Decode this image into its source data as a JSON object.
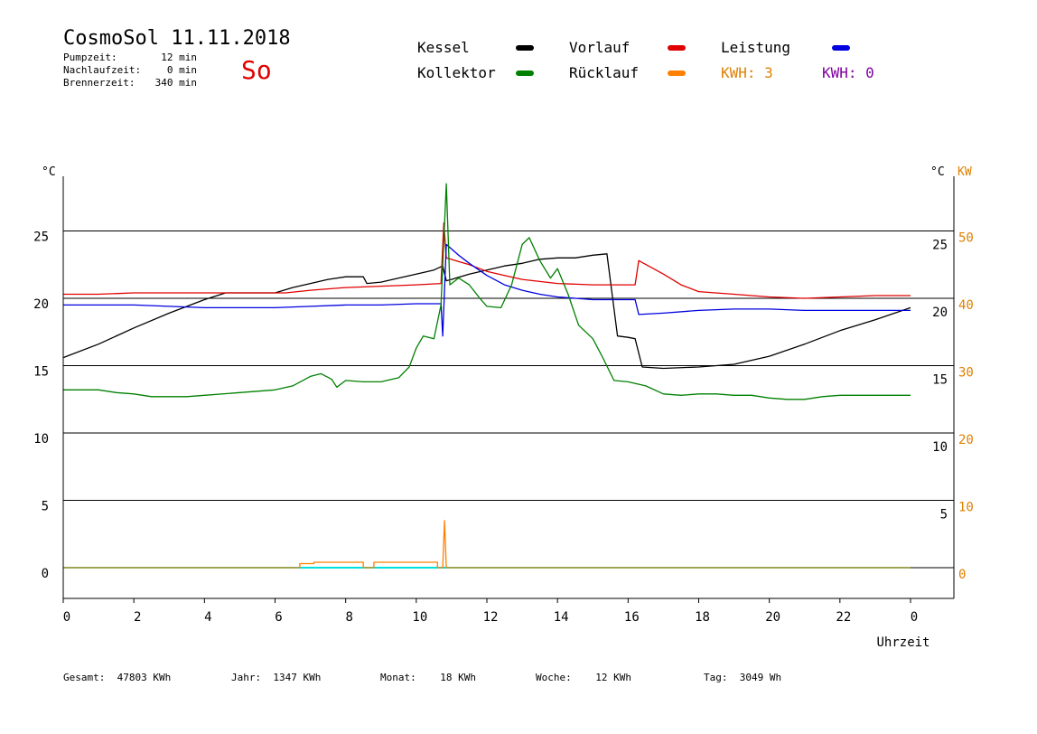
{
  "header": {
    "title": "CosmoSol 11.11.2018",
    "day": "So",
    "stats": [
      {
        "label": "Pumpzeit:",
        "value": "12 min"
      },
      {
        "label": "Nachlaufzeit:",
        "value": "0 min"
      },
      {
        "label": "Brennerzeit:",
        "value": "340 min"
      }
    ]
  },
  "legend": {
    "items": [
      {
        "label": "Kessel",
        "color": "#000000"
      },
      {
        "label": "Vorlauf",
        "color": "#e00000"
      },
      {
        "label": "Leistung",
        "color": "#ff8000"
      },
      {
        "label": "Kollektor",
        "color": "#008000"
      },
      {
        "label": "Rücklauf",
        "color": "#0000e0"
      }
    ],
    "kwh": [
      {
        "label": "KWH:",
        "value": "3",
        "color": "#e08000"
      },
      {
        "label": "KWH:",
        "value": "0",
        "color": "#8000a0"
      }
    ]
  },
  "footer": [
    {
      "label": "Gesamt:",
      "value": "47803 KWh"
    },
    {
      "label": "Jahr:",
      "value": "1347 KWh"
    },
    {
      "label": "Monat:",
      "value": "18 KWh"
    },
    {
      "label": "Woche:",
      "value": "12 KWh"
    },
    {
      "label": "Tag:",
      "value": "3049 Wh"
    }
  ],
  "chart_data": {
    "type": "line",
    "xlabel": "Uhrzeit",
    "xlim": [
      0,
      24
    ],
    "x_ticks": [
      "0",
      "2",
      "4",
      "6",
      "8",
      "10",
      "12",
      "14",
      "16",
      "18",
      "20",
      "22",
      "0"
    ],
    "ylabel_left": "°C",
    "ylabel_right": "°C",
    "ylabel_right2": "KW",
    "ylim": [
      -2,
      29
    ],
    "y_ticks_left": [
      "0",
      "5",
      "10",
      "15",
      "20",
      "25"
    ],
    "y_ticks_right": [
      "5",
      "10",
      "15",
      "20",
      "25"
    ],
    "y_ticks_right2": [
      "0",
      "10",
      "20",
      "30",
      "40",
      "50"
    ],
    "series": [
      {
        "name": "Kessel",
        "color": "#000000",
        "points": [
          [
            0,
            15.6
          ],
          [
            1,
            16.6
          ],
          [
            2,
            17.8
          ],
          [
            3,
            18.9
          ],
          [
            4,
            19.9
          ],
          [
            4.6,
            20.4
          ],
          [
            6,
            20.4
          ],
          [
            6.5,
            20.8
          ],
          [
            7,
            21.1
          ],
          [
            7.5,
            21.4
          ],
          [
            8,
            21.6
          ],
          [
            8.5,
            21.6
          ],
          [
            8.6,
            21.1
          ],
          [
            9,
            21.2
          ],
          [
            9.5,
            21.5
          ],
          [
            10,
            21.8
          ],
          [
            10.5,
            22.1
          ],
          [
            10.75,
            22.4
          ],
          [
            10.85,
            21.3
          ],
          [
            11,
            21.4
          ],
          [
            11.5,
            21.8
          ],
          [
            12,
            22.1
          ],
          [
            12.5,
            22.4
          ],
          [
            13,
            22.6
          ],
          [
            13.5,
            22.9
          ],
          [
            14,
            23.0
          ],
          [
            14.5,
            23.0
          ],
          [
            15,
            23.2
          ],
          [
            15.4,
            23.3
          ],
          [
            15.7,
            17.2
          ],
          [
            16,
            17.1
          ],
          [
            16.2,
            17.0
          ],
          [
            16.4,
            14.9
          ],
          [
            17,
            14.8
          ],
          [
            18,
            14.9
          ],
          [
            19,
            15.1
          ],
          [
            20,
            15.7
          ],
          [
            21,
            16.6
          ],
          [
            22,
            17.6
          ],
          [
            23,
            18.4
          ],
          [
            24,
            19.3
          ]
        ]
      },
      {
        "name": "Vorlauf",
        "color": "#e00000",
        "points": [
          [
            0,
            20.3
          ],
          [
            1,
            20.3
          ],
          [
            2,
            20.4
          ],
          [
            3,
            20.4
          ],
          [
            4,
            20.4
          ],
          [
            5,
            20.4
          ],
          [
            6.3,
            20.4
          ],
          [
            7,
            20.6
          ],
          [
            8,
            20.8
          ],
          [
            9,
            20.9
          ],
          [
            10,
            21.0
          ],
          [
            10.7,
            21.1
          ],
          [
            10.78,
            25.6
          ],
          [
            10.85,
            23.0
          ],
          [
            11.5,
            22.5
          ],
          [
            12,
            22.0
          ],
          [
            12.5,
            21.7
          ],
          [
            13,
            21.4
          ],
          [
            14,
            21.1
          ],
          [
            15,
            21.0
          ],
          [
            16.2,
            21.0
          ],
          [
            16.3,
            22.8
          ],
          [
            17,
            21.8
          ],
          [
            17.5,
            21.0
          ],
          [
            18,
            20.5
          ],
          [
            19,
            20.3
          ],
          [
            20,
            20.1
          ],
          [
            21,
            20.0
          ],
          [
            22,
            20.1
          ],
          [
            23,
            20.2
          ],
          [
            24,
            20.2
          ]
        ]
      },
      {
        "name": "Rücklauf",
        "color": "#0000e0",
        "points": [
          [
            0,
            19.5
          ],
          [
            1,
            19.5
          ],
          [
            2,
            19.5
          ],
          [
            3,
            19.4
          ],
          [
            4,
            19.3
          ],
          [
            5,
            19.3
          ],
          [
            6,
            19.3
          ],
          [
            7,
            19.4
          ],
          [
            8,
            19.5
          ],
          [
            9,
            19.5
          ],
          [
            10,
            19.6
          ],
          [
            10.7,
            19.6
          ],
          [
            10.75,
            17.2
          ],
          [
            10.85,
            24.0
          ],
          [
            11.2,
            23.2
          ],
          [
            11.5,
            22.6
          ],
          [
            12,
            21.7
          ],
          [
            12.5,
            21.0
          ],
          [
            13,
            20.6
          ],
          [
            13.5,
            20.3
          ],
          [
            14,
            20.1
          ],
          [
            15,
            19.9
          ],
          [
            16.2,
            19.9
          ],
          [
            16.3,
            18.8
          ],
          [
            17,
            18.9
          ],
          [
            18,
            19.1
          ],
          [
            19,
            19.2
          ],
          [
            20,
            19.2
          ],
          [
            21,
            19.1
          ],
          [
            22,
            19.1
          ],
          [
            23,
            19.1
          ],
          [
            24,
            19.1
          ]
        ]
      },
      {
        "name": "Kollektor",
        "color": "#008000",
        "points": [
          [
            0,
            13.2
          ],
          [
            1,
            13.2
          ],
          [
            1.5,
            13.0
          ],
          [
            2,
            12.9
          ],
          [
            2.5,
            12.7
          ],
          [
            3,
            12.7
          ],
          [
            3.5,
            12.7
          ],
          [
            4,
            12.8
          ],
          [
            5,
            13.0
          ],
          [
            6,
            13.2
          ],
          [
            6.5,
            13.5
          ],
          [
            7,
            14.2
          ],
          [
            7.3,
            14.4
          ],
          [
            7.6,
            14.0
          ],
          [
            7.75,
            13.4
          ],
          [
            8,
            13.9
          ],
          [
            8.5,
            13.8
          ],
          [
            9,
            13.8
          ],
          [
            9.5,
            14.1
          ],
          [
            9.8,
            14.9
          ],
          [
            10,
            16.3
          ],
          [
            10.2,
            17.2
          ],
          [
            10.5,
            17.0
          ],
          [
            10.7,
            19.5
          ],
          [
            10.85,
            28.5
          ],
          [
            10.95,
            21.0
          ],
          [
            11.2,
            21.5
          ],
          [
            11.5,
            21.0
          ],
          [
            11.8,
            20.0
          ],
          [
            12,
            19.4
          ],
          [
            12.4,
            19.3
          ],
          [
            12.7,
            21.0
          ],
          [
            13,
            24.0
          ],
          [
            13.2,
            24.5
          ],
          [
            13.5,
            22.8
          ],
          [
            13.8,
            21.5
          ],
          [
            14,
            22.2
          ],
          [
            14.3,
            20.3
          ],
          [
            14.6,
            18.0
          ],
          [
            15,
            17.0
          ],
          [
            15.3,
            15.5
          ],
          [
            15.6,
            13.9
          ],
          [
            16,
            13.8
          ],
          [
            16.5,
            13.5
          ],
          [
            17,
            12.9
          ],
          [
            17.5,
            12.8
          ],
          [
            18,
            12.9
          ],
          [
            18.5,
            12.9
          ],
          [
            19,
            12.8
          ],
          [
            19.5,
            12.8
          ],
          [
            20,
            12.6
          ],
          [
            20.5,
            12.5
          ],
          [
            21,
            12.5
          ],
          [
            21.5,
            12.7
          ],
          [
            22,
            12.8
          ],
          [
            23,
            12.8
          ],
          [
            24,
            12.8
          ]
        ]
      },
      {
        "name": "Leistung",
        "color": "#ff8000",
        "points": [
          [
            0,
            0
          ],
          [
            6.7,
            0
          ],
          [
            6.7,
            0.3
          ],
          [
            7.1,
            0.3
          ],
          [
            7.1,
            0.4
          ],
          [
            8.5,
            0.4
          ],
          [
            8.5,
            0
          ],
          [
            8.8,
            0
          ],
          [
            8.8,
            0.4
          ],
          [
            10.6,
            0.4
          ],
          [
            10.6,
            0
          ],
          [
            10.75,
            0
          ],
          [
            10.8,
            3.5
          ],
          [
            10.85,
            0
          ],
          [
            24,
            0
          ]
        ]
      }
    ]
  }
}
